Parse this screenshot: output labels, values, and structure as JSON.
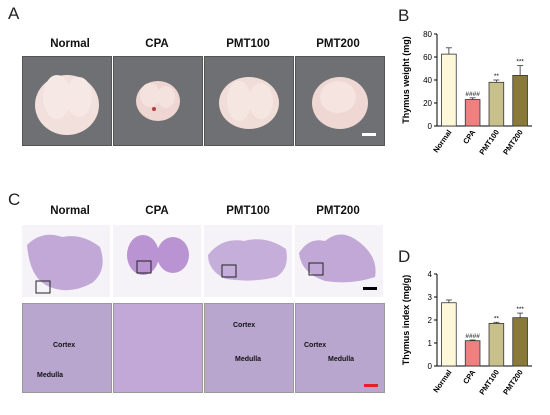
{
  "panels": {
    "a": "A",
    "b": "B",
    "c": "C",
    "d": "D"
  },
  "groups": [
    "Normal",
    "CPA",
    "PMT100",
    "PMT200"
  ],
  "tissue": {
    "cortex": "Cortex",
    "medulla": "Medulla"
  },
  "colors": {
    "normal": "#fff8d8",
    "cpa": "#f08080",
    "pmt100": "#c8c08a",
    "pmt200": "#8a7a3a",
    "scale_black": "#000000",
    "scale_red": "#e0202a"
  },
  "chart_data": [
    {
      "type": "bar",
      "title": "",
      "ylabel": "Thymus weight (mg)",
      "xlabel": "",
      "categories": [
        "Normal",
        "CPA",
        "PMT100",
        "PMT200"
      ],
      "values": [
        62.5,
        23,
        38,
        44
      ],
      "errors": [
        5.5,
        1.5,
        2,
        8.5
      ],
      "annotations": [
        "",
        "####",
        "**",
        "***"
      ],
      "ylim": [
        0,
        80
      ],
      "yticks": [
        0,
        20,
        40,
        60,
        80
      ]
    },
    {
      "type": "bar",
      "title": "",
      "ylabel": "Thymus index (mg/g)",
      "xlabel": "",
      "categories": [
        "Normal",
        "CPA",
        "PMT100",
        "PMT200"
      ],
      "values": [
        2.75,
        1.1,
        1.85,
        2.1
      ],
      "errors": [
        0.12,
        0.03,
        0.05,
        0.2
      ],
      "annotations": [
        "",
        "####",
        "**",
        "***"
      ],
      "ylim": [
        0,
        4
      ],
      "yticks": [
        0,
        1,
        2,
        3,
        4
      ]
    }
  ]
}
